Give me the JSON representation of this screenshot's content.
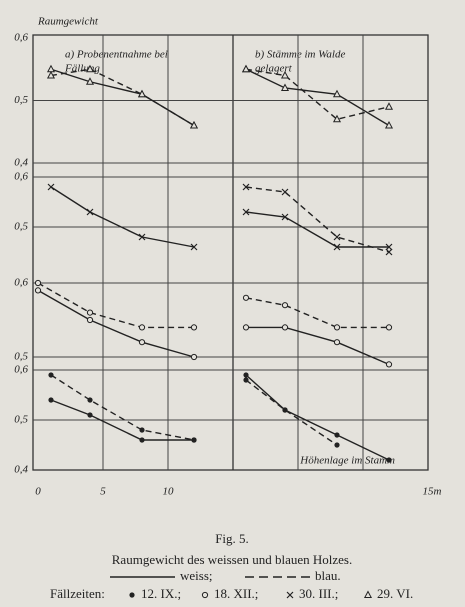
{
  "y_label": "Raumgewicht",
  "x_label": "Höhenlage im Stamm",
  "xlim": [
    0,
    15
  ],
  "xticks": [
    0,
    5,
    10,
    {
      "value": 15,
      "label": "15m"
    }
  ],
  "panels": [
    [
      "a) Probenentnahme bei",
      "Fällung"
    ],
    [
      "b) Stämme im Walde",
      "gelagert"
    ]
  ],
  "chart_data": [
    {
      "type": "line",
      "ylim": [
        0.4,
        0.6
      ],
      "yticks": [
        {
          "value": 0.6,
          "label": "0,6"
        },
        {
          "value": 0.5,
          "label": "0,5"
        },
        {
          "value": 0.4,
          "label": "0,4"
        }
      ],
      "marker": "triangle",
      "series": [
        {
          "panel": 0,
          "style": "solid",
          "x": [
            1,
            4,
            8,
            12
          ],
          "values": [
            0.55,
            0.53,
            0.51,
            0.46
          ]
        },
        {
          "panel": 0,
          "style": "dashed",
          "x": [
            1,
            4,
            8,
            12
          ],
          "values": [
            0.54,
            0.55,
            0.51,
            0.46
          ]
        },
        {
          "panel": 1,
          "style": "solid",
          "x": [
            1,
            4,
            8,
            12
          ],
          "values": [
            0.55,
            0.52,
            0.51,
            0.46
          ]
        },
        {
          "panel": 1,
          "style": "dashed",
          "x": [
            1,
            4,
            8,
            12
          ],
          "values": [
            0.55,
            0.54,
            0.47,
            0.49
          ]
        }
      ]
    },
    {
      "type": "line",
      "ylim": [
        0.4,
        0.6
      ],
      "yticks": [
        {
          "value": 0.6,
          "label": "0,6"
        },
        {
          "value": 0.5,
          "label": "0,5"
        }
      ],
      "marker": "x",
      "series": [
        {
          "panel": 0,
          "style": "solid",
          "x": [
            1,
            4,
            8,
            12
          ],
          "values": [
            0.58,
            0.53,
            0.48,
            0.46
          ]
        },
        {
          "panel": 1,
          "style": "solid",
          "x": [
            1,
            4,
            8,
            12
          ],
          "values": [
            0.53,
            0.52,
            0.46,
            0.46
          ]
        },
        {
          "panel": 1,
          "style": "dashed",
          "x": [
            1,
            4,
            8,
            12
          ],
          "values": [
            0.58,
            0.57,
            0.48,
            0.45
          ]
        }
      ]
    },
    {
      "type": "line",
      "ylim": [
        0.4,
        0.6
      ],
      "yticks": [
        {
          "value": 0.6,
          "label": "0,6"
        },
        {
          "value": 0.5,
          "label": "0,5"
        }
      ],
      "marker": "circle",
      "series": [
        {
          "panel": 0,
          "style": "solid",
          "x": [
            0,
            4,
            8,
            12
          ],
          "values": [
            0.59,
            0.55,
            0.52,
            0.5
          ]
        },
        {
          "panel": 0,
          "style": "dashed",
          "x": [
            0,
            4,
            8,
            12
          ],
          "values": [
            0.6,
            0.56,
            0.54,
            0.54
          ]
        },
        {
          "panel": 1,
          "style": "solid",
          "x": [
            1,
            4,
            8,
            12
          ],
          "values": [
            0.54,
            0.54,
            0.52,
            0.49
          ]
        },
        {
          "panel": 1,
          "style": "dashed",
          "x": [
            1,
            4,
            8,
            12
          ],
          "values": [
            0.58,
            0.57,
            0.54,
            0.54
          ]
        }
      ]
    },
    {
      "type": "line",
      "ylim": [
        0.4,
        0.6
      ],
      "yticks": [
        {
          "value": 0.6,
          "label": "0,6"
        },
        {
          "value": 0.5,
          "label": "0,5"
        },
        {
          "value": 0.4,
          "label": "0,4"
        }
      ],
      "marker": "dot",
      "series": [
        {
          "panel": 0,
          "style": "solid",
          "x": [
            1,
            4,
            8,
            12
          ],
          "values": [
            0.54,
            0.51,
            0.46,
            0.46
          ]
        },
        {
          "panel": 0,
          "style": "dashed",
          "x": [
            1,
            4,
            8,
            12
          ],
          "values": [
            0.59,
            0.54,
            0.48,
            0.46
          ]
        },
        {
          "panel": 1,
          "style": "solid",
          "x": [
            1,
            4,
            8,
            12
          ],
          "values": [
            0.59,
            0.52,
            0.47,
            0.42
          ]
        },
        {
          "panel": 1,
          "style": "dashed",
          "x": [
            1,
            4,
            8
          ],
          "values": [
            0.58,
            0.52,
            0.45
          ]
        }
      ]
    }
  ],
  "caption": {
    "figure": "Fig. 5.",
    "title": "Raumgewicht des weissen und blauen Holzes."
  },
  "legend": {
    "lines": [
      {
        "label": "weiss;",
        "style": "solid"
      },
      {
        "label": "blau.",
        "style": "dashed"
      }
    ],
    "title": "Fällzeiten:",
    "markers": [
      {
        "marker": "dot",
        "label": "12. IX.;"
      },
      {
        "marker": "circle",
        "label": "18. XII.;"
      },
      {
        "marker": "x",
        "label": "30. III.;"
      },
      {
        "marker": "triangle",
        "label": "29. VI."
      }
    ]
  }
}
